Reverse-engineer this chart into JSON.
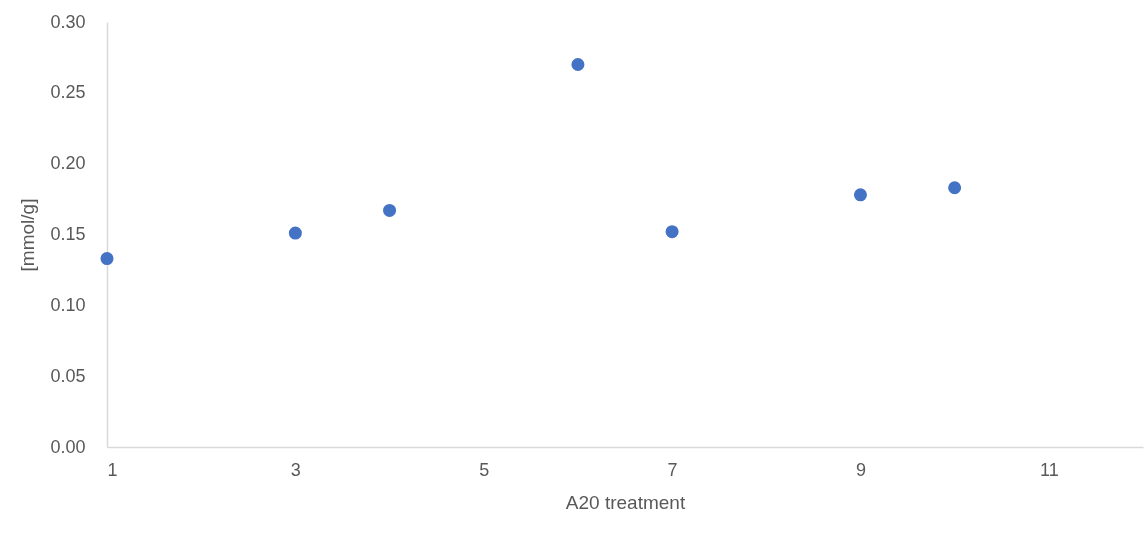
{
  "chart_data": {
    "type": "scatter",
    "xlabel": "A20 treatment",
    "ylabel": "[mmol/g]",
    "x": [
      1,
      3,
      4,
      6,
      7,
      9,
      10
    ],
    "series": [
      {
        "color": "#4472c4",
        "values": [
          0.133,
          0.151,
          0.167,
          0.27,
          0.152,
          0.178,
          0.183
        ]
      }
    ],
    "xlim": [
      1,
      12
    ],
    "xticks": [
      1,
      3,
      5,
      7,
      9,
      11
    ],
    "ylim": [
      0,
      0.3
    ],
    "yticks": [
      {
        "value": 0,
        "label": "0.00"
      },
      {
        "value": 0.05,
        "label": "0.05"
      },
      {
        "value": 0.1,
        "label": "0.10"
      },
      {
        "value": 0.15,
        "label": "0.15"
      },
      {
        "value": 0.2,
        "label": "0.20"
      },
      {
        "value": 0.25,
        "label": "0.25"
      },
      {
        "value": 0.3,
        "label": "0.30"
      }
    ],
    "grid": false,
    "marker": "circle"
  }
}
